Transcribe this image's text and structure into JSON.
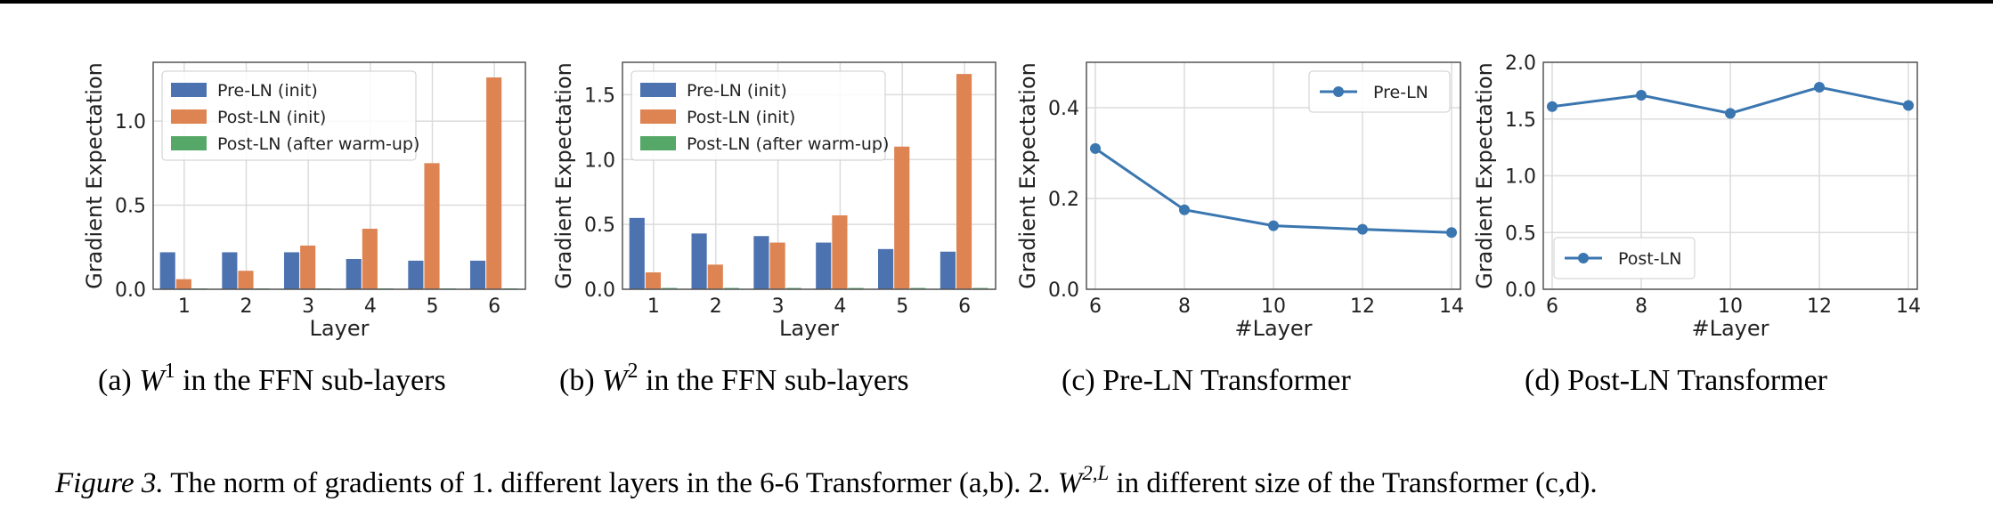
{
  "colors": {
    "pre_ln": "#4c72b0",
    "post_ln_init": "#dd8452",
    "post_ln_warmup": "#55a868",
    "line": "#3a76b0"
  },
  "chart_data": [
    {
      "type": "bar",
      "panel": "a",
      "caption_prefix": "(a)",
      "caption_math": "W",
      "caption_sup": "1",
      "caption_rest": "in the FFN sub-layers",
      "xlabel": "Layer",
      "ylabel": "Gradient Expectation",
      "ylim": [
        0,
        1.35
      ],
      "yticks": [
        "0.0",
        "0.5",
        "1.0"
      ],
      "categories": [
        "1",
        "2",
        "3",
        "4",
        "5",
        "6"
      ],
      "series": [
        {
          "name": "Pre-LN (init)",
          "values": [
            0.22,
            0.22,
            0.22,
            0.18,
            0.17,
            0.17
          ]
        },
        {
          "name": "Post-LN (init)",
          "values": [
            0.06,
            0.11,
            0.26,
            0.36,
            0.75,
            1.26
          ]
        },
        {
          "name": "Post-LN (after warm-up)",
          "values": [
            0.005,
            0.005,
            0.005,
            0.005,
            0.005,
            0.005
          ]
        }
      ],
      "legend": "top-left",
      "grid": true
    },
    {
      "type": "bar",
      "panel": "b",
      "caption_prefix": "(b)",
      "caption_math": "W",
      "caption_sup": "2",
      "caption_rest": "in the FFN sub-layers",
      "xlabel": "Layer",
      "ylabel": "Gradient Expectation",
      "ylim": [
        0,
        1.75
      ],
      "yticks": [
        "0.0",
        "0.5",
        "1.0",
        "1.5"
      ],
      "categories": [
        "1",
        "2",
        "3",
        "4",
        "5",
        "6"
      ],
      "series": [
        {
          "name": "Pre-LN (init)",
          "values": [
            0.55,
            0.43,
            0.41,
            0.36,
            0.31,
            0.29
          ]
        },
        {
          "name": "Post-LN (init)",
          "values": [
            0.13,
            0.19,
            0.36,
            0.57,
            1.1,
            1.66
          ]
        },
        {
          "name": "Post-LN (after warm-up)",
          "values": [
            0.01,
            0.01,
            0.01,
            0.01,
            0.01,
            0.01
          ]
        }
      ],
      "legend": "top-left",
      "grid": true
    },
    {
      "type": "line",
      "panel": "c",
      "caption_prefix": "(c)",
      "caption_text": "Pre-LN Transformer",
      "xlabel": "#Layer",
      "ylabel": "Gradient Expectation",
      "xlim": [
        5.8,
        14.2
      ],
      "ylim": [
        0,
        0.5
      ],
      "xticks": [
        "6",
        "8",
        "10",
        "12",
        "14"
      ],
      "yticks": [
        "0.0",
        "0.2",
        "0.4"
      ],
      "series": [
        {
          "name": "Pre-LN",
          "x": [
            6,
            8,
            10,
            12,
            14
          ],
          "values": [
            0.31,
            0.175,
            0.14,
            0.132,
            0.125
          ]
        }
      ],
      "legend": "top-right",
      "grid": true
    },
    {
      "type": "line",
      "panel": "d",
      "caption_prefix": "(d)",
      "caption_text": "Post-LN Transformer",
      "xlabel": "#Layer",
      "ylabel": "Gradient Expectation",
      "xlim": [
        5.8,
        14.2
      ],
      "ylim": [
        0,
        2.0
      ],
      "xticks": [
        "6",
        "8",
        "10",
        "12",
        "14"
      ],
      "yticks": [
        "0.0",
        "0.5",
        "1.0",
        "1.5",
        "2.0"
      ],
      "series": [
        {
          "name": "Post-LN",
          "x": [
            6,
            8,
            10,
            12,
            14
          ],
          "values": [
            1.61,
            1.71,
            1.55,
            1.78,
            1.62
          ]
        }
      ],
      "legend": "bottom-left",
      "grid": true
    }
  ],
  "figure_caption": {
    "label": "Figure 3.",
    "text1": "The norm of gradients of 1. different layers in the 6-6 Transformer (a,b). 2.",
    "math": "W",
    "sup": "2,L",
    "text2": "in different size of the Transformer (c,d)."
  }
}
